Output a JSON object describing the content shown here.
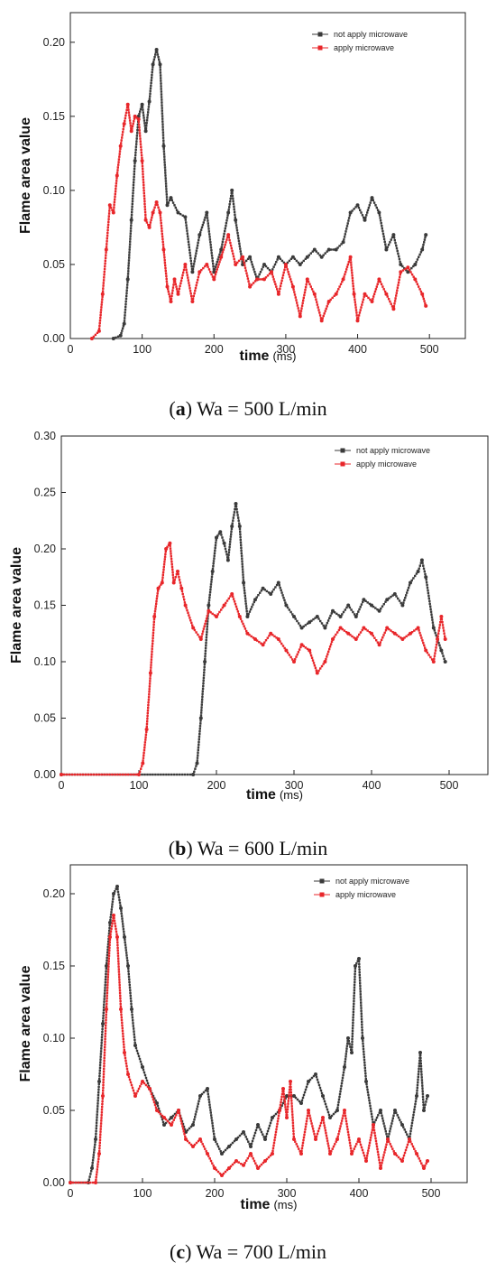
{
  "colors": {
    "not_apply": "#3a3a3a",
    "apply": "#e8262a"
  },
  "chart_data": [
    {
      "type": "line",
      "panel": "a",
      "caption": {
        "letter": "a",
        "rest": " Wa = 500 L/min"
      },
      "xlabel": "time",
      "xunit": "(ms)",
      "ylabel": "Flame area value",
      "xlim": [
        0,
        550
      ],
      "ylim": [
        0,
        0.22
      ],
      "xticks": [
        "0",
        "100",
        "200",
        "300",
        "400",
        "500"
      ],
      "yticks": [
        "0.00",
        "0.05",
        "0.10",
        "0.15",
        "0.20"
      ],
      "grid": false,
      "legend_position": "top-right",
      "series": [
        {
          "name": "not apply microwave",
          "x": [
            60,
            70,
            75,
            80,
            85,
            90,
            95,
            100,
            105,
            110,
            115,
            120,
            125,
            130,
            135,
            140,
            150,
            160,
            170,
            180,
            190,
            200,
            210,
            220,
            225,
            230,
            240,
            250,
            260,
            270,
            280,
            290,
            300,
            310,
            320,
            330,
            340,
            350,
            360,
            370,
            380,
            390,
            400,
            410,
            420,
            430,
            440,
            450,
            460,
            470,
            480,
            490,
            495
          ],
          "values": [
            0.0,
            0.002,
            0.01,
            0.04,
            0.08,
            0.12,
            0.15,
            0.158,
            0.14,
            0.16,
            0.185,
            0.195,
            0.185,
            0.13,
            0.09,
            0.095,
            0.085,
            0.082,
            0.045,
            0.07,
            0.085,
            0.045,
            0.06,
            0.085,
            0.1,
            0.08,
            0.05,
            0.055,
            0.04,
            0.05,
            0.045,
            0.055,
            0.05,
            0.055,
            0.05,
            0.055,
            0.06,
            0.055,
            0.06,
            0.06,
            0.065,
            0.085,
            0.09,
            0.08,
            0.095,
            0.085,
            0.06,
            0.07,
            0.05,
            0.045,
            0.05,
            0.06,
            0.07
          ]
        },
        {
          "name": "apply microwave",
          "x": [
            30,
            40,
            45,
            50,
            55,
            60,
            65,
            70,
            75,
            80,
            85,
            90,
            95,
            100,
            105,
            110,
            115,
            120,
            125,
            130,
            135,
            140,
            145,
            150,
            160,
            170,
            180,
            190,
            200,
            210,
            220,
            230,
            240,
            250,
            260,
            270,
            280,
            290,
            300,
            310,
            320,
            330,
            340,
            350,
            360,
            370,
            380,
            390,
            395,
            400,
            410,
            420,
            430,
            440,
            450,
            460,
            470,
            480,
            490,
            495
          ],
          "values": [
            0.0,
            0.005,
            0.03,
            0.06,
            0.09,
            0.085,
            0.11,
            0.13,
            0.145,
            0.158,
            0.14,
            0.15,
            0.148,
            0.12,
            0.08,
            0.075,
            0.085,
            0.092,
            0.085,
            0.06,
            0.035,
            0.025,
            0.04,
            0.03,
            0.05,
            0.025,
            0.045,
            0.05,
            0.04,
            0.055,
            0.07,
            0.05,
            0.055,
            0.035,
            0.04,
            0.04,
            0.045,
            0.03,
            0.05,
            0.035,
            0.015,
            0.04,
            0.03,
            0.012,
            0.025,
            0.03,
            0.04,
            0.055,
            0.03,
            0.012,
            0.03,
            0.025,
            0.04,
            0.03,
            0.02,
            0.045,
            0.048,
            0.04,
            0.03,
            0.022
          ]
        }
      ]
    },
    {
      "type": "line",
      "panel": "b",
      "caption": {
        "letter": "b",
        "rest": " Wa = 600 L/min"
      },
      "xlabel": "time",
      "xunit": "(ms)",
      "ylabel": "Flame area value",
      "xlim": [
        0,
        550
      ],
      "ylim": [
        0,
        0.3
      ],
      "xticks": [
        "0",
        "100",
        "200",
        "300",
        "400",
        "500"
      ],
      "yticks": [
        "0.00",
        "0.05",
        "0.10",
        "0.15",
        "0.20",
        "0.25",
        "0.30"
      ],
      "grid": false,
      "legend_position": "top-right",
      "series": [
        {
          "name": "not apply microwave",
          "x": [
            0,
            170,
            175,
            180,
            185,
            190,
            195,
            200,
            205,
            210,
            215,
            220,
            225,
            230,
            235,
            240,
            250,
            260,
            270,
            280,
            290,
            300,
            310,
            320,
            330,
            340,
            350,
            360,
            370,
            380,
            390,
            400,
            410,
            420,
            430,
            440,
            450,
            460,
            465,
            470,
            480,
            490,
            495
          ],
          "values": [
            0.0,
            0.0,
            0.01,
            0.05,
            0.1,
            0.15,
            0.18,
            0.21,
            0.215,
            0.205,
            0.19,
            0.22,
            0.24,
            0.22,
            0.17,
            0.14,
            0.155,
            0.165,
            0.16,
            0.17,
            0.15,
            0.14,
            0.13,
            0.135,
            0.14,
            0.13,
            0.145,
            0.14,
            0.15,
            0.14,
            0.155,
            0.15,
            0.145,
            0.155,
            0.16,
            0.15,
            0.17,
            0.18,
            0.19,
            0.175,
            0.13,
            0.11,
            0.1
          ]
        },
        {
          "name": "apply microwave",
          "x": [
            0,
            100,
            105,
            110,
            115,
            120,
            125,
            130,
            135,
            140,
            145,
            150,
            155,
            160,
            170,
            180,
            190,
            200,
            210,
            220,
            230,
            240,
            250,
            260,
            270,
            280,
            290,
            300,
            310,
            320,
            330,
            340,
            350,
            360,
            370,
            380,
            390,
            400,
            410,
            420,
            430,
            440,
            450,
            460,
            470,
            480,
            485,
            490,
            495
          ],
          "values": [
            0.0,
            0.0,
            0.01,
            0.04,
            0.09,
            0.14,
            0.165,
            0.17,
            0.2,
            0.205,
            0.17,
            0.18,
            0.165,
            0.15,
            0.13,
            0.12,
            0.145,
            0.14,
            0.15,
            0.16,
            0.14,
            0.125,
            0.12,
            0.115,
            0.125,
            0.12,
            0.11,
            0.1,
            0.115,
            0.11,
            0.09,
            0.1,
            0.12,
            0.13,
            0.125,
            0.12,
            0.13,
            0.125,
            0.115,
            0.13,
            0.125,
            0.12,
            0.125,
            0.13,
            0.11,
            0.1,
            0.12,
            0.14,
            0.12
          ]
        }
      ]
    },
    {
      "type": "line",
      "panel": "c",
      "caption": {
        "letter": "c",
        "rest": " Wa = 700 L/min"
      },
      "xlabel": "time",
      "xunit": "(ms)",
      "ylabel": "Flame area value",
      "xlim": [
        0,
        550
      ],
      "ylim": [
        0,
        0.22
      ],
      "xticks": [
        "0",
        "100",
        "200",
        "300",
        "400",
        "500"
      ],
      "yticks": [
        "0.00",
        "0.05",
        "0.10",
        "0.15",
        "0.20"
      ],
      "grid": false,
      "legend_position": "top-right",
      "series": [
        {
          "name": "not apply microwave",
          "x": [
            0,
            25,
            30,
            35,
            40,
            45,
            50,
            55,
            60,
            65,
            70,
            75,
            80,
            85,
            90,
            100,
            110,
            120,
            130,
            140,
            150,
            160,
            170,
            180,
            190,
            200,
            210,
            220,
            230,
            240,
            250,
            260,
            270,
            280,
            290,
            300,
            310,
            320,
            330,
            340,
            350,
            360,
            370,
            380,
            385,
            390,
            395,
            400,
            405,
            410,
            420,
            430,
            440,
            450,
            460,
            470,
            480,
            485,
            490,
            495
          ],
          "values": [
            0.0,
            0.0,
            0.01,
            0.03,
            0.07,
            0.11,
            0.15,
            0.18,
            0.2,
            0.205,
            0.19,
            0.17,
            0.15,
            0.12,
            0.095,
            0.08,
            0.065,
            0.055,
            0.04,
            0.045,
            0.05,
            0.035,
            0.04,
            0.06,
            0.065,
            0.03,
            0.02,
            0.025,
            0.03,
            0.035,
            0.025,
            0.04,
            0.03,
            0.045,
            0.05,
            0.06,
            0.06,
            0.055,
            0.07,
            0.075,
            0.06,
            0.045,
            0.05,
            0.08,
            0.1,
            0.09,
            0.15,
            0.155,
            0.1,
            0.07,
            0.04,
            0.05,
            0.03,
            0.05,
            0.04,
            0.03,
            0.06,
            0.09,
            0.05,
            0.06
          ]
        },
        {
          "name": "apply microwave",
          "x": [
            0,
            35,
            40,
            45,
            50,
            55,
            60,
            65,
            70,
            75,
            80,
            90,
            100,
            110,
            120,
            130,
            140,
            150,
            160,
            170,
            180,
            190,
            200,
            210,
            220,
            230,
            240,
            250,
            260,
            270,
            280,
            290,
            295,
            300,
            305,
            310,
            320,
            330,
            340,
            350,
            360,
            370,
            380,
            390,
            400,
            410,
            420,
            430,
            440,
            450,
            460,
            470,
            480,
            490,
            495
          ],
          "values": [
            0.0,
            0.0,
            0.02,
            0.06,
            0.12,
            0.17,
            0.185,
            0.17,
            0.12,
            0.09,
            0.075,
            0.06,
            0.07,
            0.065,
            0.05,
            0.045,
            0.04,
            0.05,
            0.03,
            0.025,
            0.03,
            0.02,
            0.01,
            0.005,
            0.01,
            0.015,
            0.012,
            0.02,
            0.01,
            0.015,
            0.02,
            0.05,
            0.065,
            0.045,
            0.07,
            0.03,
            0.02,
            0.05,
            0.03,
            0.045,
            0.02,
            0.03,
            0.05,
            0.02,
            0.03,
            0.015,
            0.04,
            0.01,
            0.03,
            0.02,
            0.015,
            0.03,
            0.02,
            0.01,
            0.015
          ]
        }
      ]
    }
  ]
}
